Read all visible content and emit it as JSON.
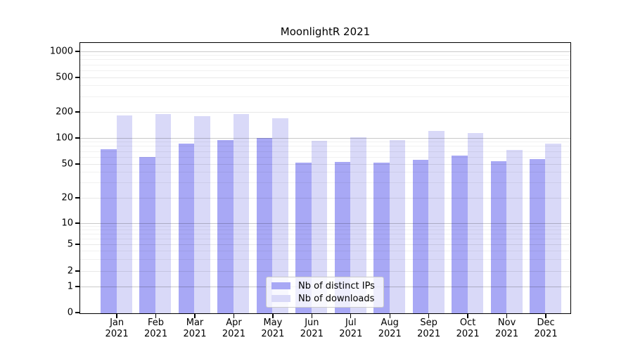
{
  "chart_data": {
    "type": "bar",
    "title": "MoonlightR 2021",
    "categories": [
      "Jan 2021",
      "Feb 2021",
      "Mar 2021",
      "Apr 2021",
      "May 2021",
      "Jun 2021",
      "Jul 2021",
      "Aug 2021",
      "Sep 2021",
      "Oct 2021",
      "Nov 2021",
      "Dec 2021"
    ],
    "series": [
      {
        "name": "Nb of distinct IPs",
        "color": "#a8a8f5",
        "values": [
          75,
          61,
          87,
          95,
          101,
          53,
          54,
          53,
          57,
          63,
          55,
          58
        ]
      },
      {
        "name": "Nb of downloads",
        "color": "#d9d9f8",
        "values": [
          185,
          193,
          182,
          193,
          172,
          94,
          104,
          95,
          123,
          116,
          74,
          88
        ]
      }
    ],
    "xlabel": "",
    "ylabel": "",
    "yscale": "symlog",
    "ytick_labels": [
      "0",
      "1",
      "2",
      "5",
      "10",
      "20",
      "50",
      "100",
      "200",
      "500",
      "1000"
    ],
    "yticks": [
      0,
      1,
      2,
      5,
      10,
      20,
      50,
      100,
      200,
      500,
      1000
    ],
    "ylim": [
      0,
      1200
    ],
    "grid": true,
    "legend_position": "lower center"
  }
}
